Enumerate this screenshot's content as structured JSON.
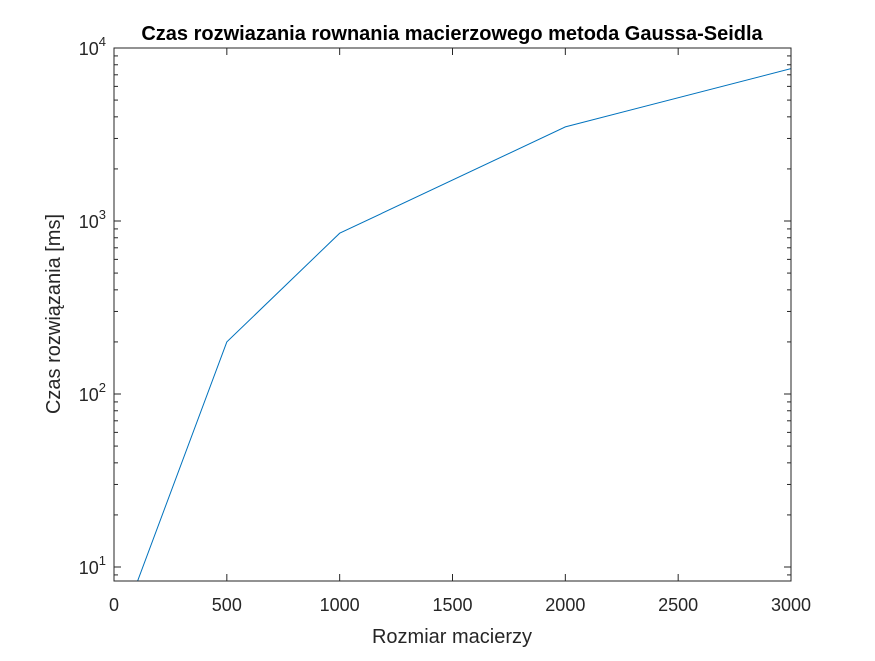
{
  "chart_data": {
    "type": "line",
    "title": "Czas rozwiazania rownania macierzowego metoda Gaussa-Seidla",
    "xlabel": "Rozmiar macierzy",
    "ylabel": "Czas rozwiązania [ms]",
    "xlim": [
      0,
      3000
    ],
    "ylim": [
      8.3,
      10000
    ],
    "yscale": "log",
    "grid": false,
    "legend": "none",
    "line_color": "#0072BD",
    "x_ticks": [
      0,
      500,
      1000,
      1500,
      2000,
      2500,
      3000
    ],
    "x_tick_labels": [
      "0",
      "500",
      "1000",
      "1500",
      "2000",
      "2500",
      "3000"
    ],
    "y_ticks": [
      10,
      100,
      1000,
      10000
    ],
    "y_tick_labels": [
      {
        "base": "10",
        "exp": "1"
      },
      {
        "base": "10",
        "exp": "2"
      },
      {
        "base": "10",
        "exp": "3"
      },
      {
        "base": "10",
        "exp": "4"
      }
    ],
    "series": [
      {
        "x": [
          100,
          500,
          1000,
          2000,
          3000
        ],
        "y": [
          8,
          200,
          850,
          3500,
          7600
        ]
      }
    ]
  }
}
